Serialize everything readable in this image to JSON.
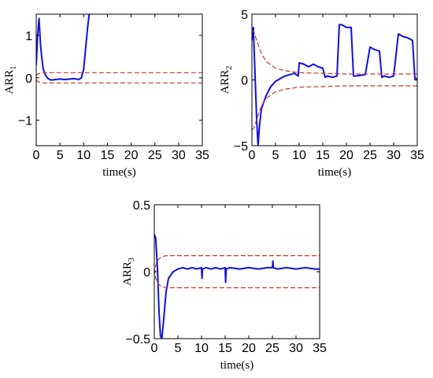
{
  "chart_data": [
    {
      "type": "line",
      "xlabel": "time(s)",
      "ylabel_main": "ARR",
      "ylabel_sub": "1",
      "xlim": [
        0,
        35
      ],
      "ylim": [
        -1.6,
        1.5
      ],
      "xticks": [
        0,
        5,
        10,
        15,
        20,
        25,
        30,
        35
      ],
      "yticks": [
        -1,
        0,
        1
      ],
      "ytick_labels": [
        "−1",
        "0",
        "1"
      ],
      "series": [
        {
          "role": "residual",
          "x": [
            0,
            0.3,
            0.6,
            0.9,
            1.2,
            1.5,
            2,
            2.5,
            3,
            3.5,
            4,
            5,
            6,
            7,
            8,
            9,
            9.5,
            10,
            10.2,
            10.5,
            10.8,
            11,
            11.3
          ],
          "y": [
            0.3,
            1.0,
            1.4,
            0.8,
            0.45,
            0.2,
            0.05,
            -0.02,
            -0.05,
            -0.05,
            -0.04,
            -0.03,
            -0.04,
            -0.03,
            -0.02,
            -0.04,
            0.0,
            0.2,
            0.45,
            0.8,
            1.15,
            1.35,
            1.6
          ]
        },
        {
          "role": "upper-threshold",
          "x": [
            0,
            0.3,
            0.8,
            1.3,
            2,
            3,
            4,
            35
          ],
          "y": [
            0.05,
            0.09,
            0.11,
            0.12,
            0.12,
            0.12,
            0.12,
            0.12
          ]
        },
        {
          "role": "lower-threshold",
          "x": [
            0,
            0.3,
            0.8,
            1.3,
            2,
            3,
            4,
            35
          ],
          "y": [
            -0.05,
            -0.09,
            -0.11,
            -0.12,
            -0.12,
            -0.12,
            -0.12,
            -0.12
          ]
        }
      ]
    },
    {
      "type": "line",
      "xlabel": "time(s)",
      "ylabel_main": "ARR",
      "ylabel_sub": "2",
      "xlim": [
        0,
        35
      ],
      "ylim": [
        -5,
        5
      ],
      "xticks": [
        0,
        5,
        10,
        15,
        20,
        25,
        30,
        35
      ],
      "yticks": [
        -5,
        0,
        5
      ],
      "ytick_labels": [
        "−5",
        "0",
        "5"
      ],
      "series": [
        {
          "role": "residual",
          "x": [
            0,
            0.3,
            0.6,
            1.0,
            1.3,
            1.6,
            2,
            3,
            4,
            5,
            6,
            7,
            8,
            9,
            9.8,
            10,
            11,
            12,
            13,
            14,
            15,
            15.5,
            16,
            17,
            18,
            18.5,
            19,
            20,
            21,
            21.5,
            22,
            24,
            25,
            26,
            27,
            27.5,
            28,
            29,
            30,
            31,
            32,
            33,
            34,
            34.5,
            35
          ],
          "y": [
            3,
            4,
            1,
            -3,
            -5,
            -3.5,
            -2.2,
            -1.2,
            -0.5,
            -0.1,
            0.1,
            0.3,
            0.4,
            0.5,
            0.3,
            1.3,
            1.2,
            1.0,
            1.2,
            1.0,
            0.9,
            0.2,
            0.3,
            0.2,
            0.3,
            4.2,
            4.2,
            4.0,
            4.0,
            0.3,
            0.3,
            0.4,
            2.5,
            2.3,
            2.2,
            0.2,
            0.3,
            0.2,
            0.3,
            3.5,
            3.3,
            3.2,
            3.0,
            0.1,
            0.1
          ]
        },
        {
          "role": "upper-threshold",
          "x": [
            0,
            0.5,
            1,
            2,
            3,
            5,
            7,
            10,
            15,
            20,
            35
          ],
          "y": [
            3.8,
            3.6,
            3.0,
            2.0,
            1.4,
            0.9,
            0.7,
            0.55,
            0.5,
            0.45,
            0.45
          ]
        },
        {
          "role": "lower-threshold",
          "x": [
            0,
            0.5,
            1,
            2,
            3,
            5,
            7,
            10,
            15,
            20,
            35
          ],
          "y": [
            -3.8,
            -3.6,
            -3.0,
            -2.0,
            -1.4,
            -0.9,
            -0.7,
            -0.55,
            -0.5,
            -0.45,
            -0.45
          ]
        }
      ]
    },
    {
      "type": "line",
      "xlabel": "time(s)",
      "ylabel_main": "ARR",
      "ylabel_sub": "3",
      "xlim": [
        0,
        35
      ],
      "ylim": [
        -0.5,
        0.5
      ],
      "xticks": [
        0,
        5,
        10,
        15,
        20,
        25,
        30,
        35
      ],
      "yticks": [
        -0.5,
        0,
        0.5
      ],
      "ytick_labels": [
        "−0.5",
        "0",
        "0.5"
      ],
      "series": [
        {
          "role": "residual",
          "x": [
            0,
            0.3,
            0.7,
            1.0,
            1.3,
            1.6,
            2,
            2.5,
            3,
            4,
            5,
            6,
            7,
            8,
            9,
            10,
            10.1,
            10.2,
            11,
            12,
            13,
            14,
            15,
            15.1,
            15.2,
            16,
            18,
            20,
            22,
            24,
            25,
            25.1,
            25.2,
            26,
            28,
            30,
            32,
            34,
            35
          ],
          "y": [
            0.28,
            0.25,
            0.0,
            -0.3,
            -0.48,
            -0.5,
            -0.35,
            -0.15,
            -0.05,
            0.0,
            0.02,
            0.03,
            0.02,
            0.03,
            0.02,
            0.03,
            -0.05,
            0.02,
            0.03,
            0.02,
            0.03,
            0.02,
            0.03,
            -0.08,
            0.02,
            0.03,
            0.02,
            0.03,
            0.02,
            0.03,
            0.03,
            0.08,
            0.03,
            0.02,
            0.03,
            0.02,
            0.03,
            0.02,
            0.02
          ]
        },
        {
          "role": "upper-threshold",
          "x": [
            0,
            0.3,
            0.8,
            1.5,
            2.5,
            4,
            35
          ],
          "y": [
            -0.02,
            0.05,
            0.09,
            0.11,
            0.12,
            0.12,
            0.12
          ]
        },
        {
          "role": "lower-threshold",
          "x": [
            0,
            0.3,
            0.8,
            1.5,
            2.5,
            4,
            35
          ],
          "y": [
            0.02,
            -0.05,
            -0.09,
            -0.11,
            -0.12,
            -0.12,
            -0.12
          ]
        }
      ]
    }
  ]
}
